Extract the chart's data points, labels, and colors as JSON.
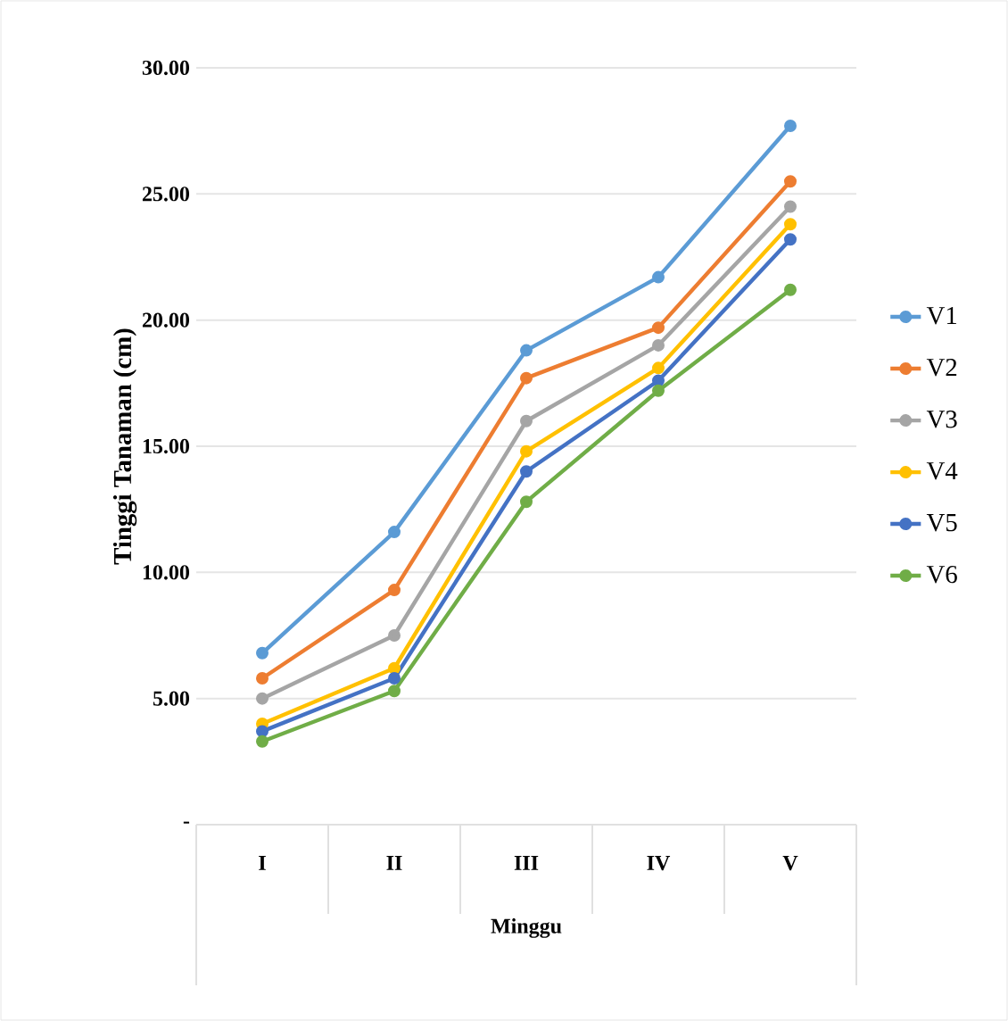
{
  "chart_data": {
    "type": "line",
    "xlabel": "Minggu",
    "ylabel": "Tinggi Tanaman (cm)",
    "categories": [
      "I",
      "II",
      "III",
      "IV",
      "V"
    ],
    "series": [
      {
        "name": "V1",
        "color": "#5b9bd5",
        "values": [
          6.8,
          11.6,
          18.8,
          21.7,
          27.7
        ]
      },
      {
        "name": "V2",
        "color": "#ed7d31",
        "values": [
          5.8,
          9.3,
          17.7,
          19.7,
          25.5
        ]
      },
      {
        "name": "V3",
        "color": "#a5a5a5",
        "values": [
          5.0,
          7.5,
          16.0,
          19.0,
          24.5
        ]
      },
      {
        "name": "V4",
        "color": "#ffc000",
        "values": [
          4.0,
          6.2,
          14.8,
          18.1,
          23.8
        ]
      },
      {
        "name": "V5",
        "color": "#4472c4",
        "values": [
          3.7,
          5.8,
          14.0,
          17.6,
          23.2
        ]
      },
      {
        "name": "V6",
        "color": "#70ad47",
        "values": [
          3.3,
          5.3,
          12.8,
          17.2,
          21.2
        ]
      }
    ],
    "ylim": [
      0,
      30
    ],
    "yticks": [
      {
        "value": 0,
        "label": "-"
      },
      {
        "value": 5,
        "label": "5.00"
      },
      {
        "value": 10,
        "label": "10.00"
      },
      {
        "value": 15,
        "label": "15.00"
      },
      {
        "value": 20,
        "label": "20.00"
      },
      {
        "value": 25,
        "label": "25.00"
      },
      {
        "value": 30,
        "label": "30.00"
      }
    ],
    "grid": "y",
    "legend": "right",
    "marker": "circle",
    "line_style": "solid"
  }
}
